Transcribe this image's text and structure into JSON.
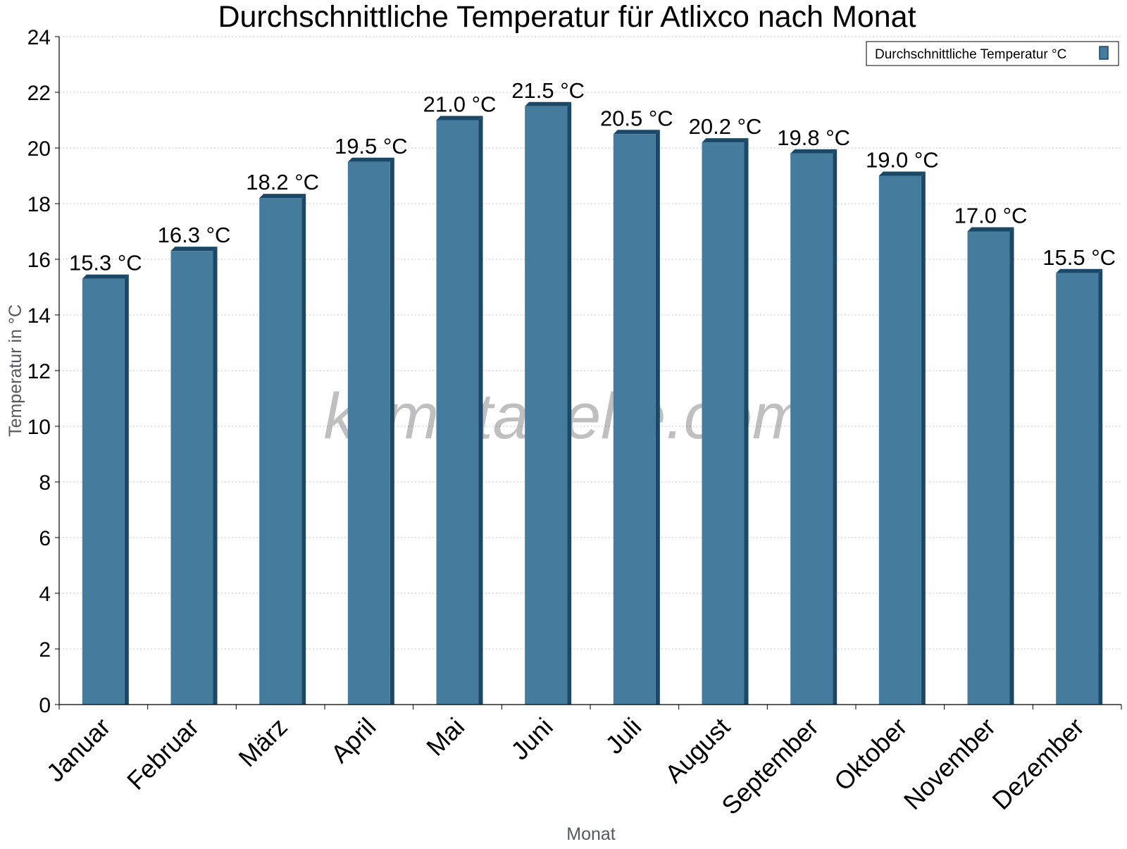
{
  "chart_data": {
    "type": "bar",
    "title": "Durchschnittliche Temperatur für Atlixco nach Monat",
    "xlabel": "Monat",
    "ylabel": "Temperatur in °C",
    "categories": [
      "Januar",
      "Februar",
      "März",
      "April",
      "Mai",
      "Juni",
      "Juli",
      "August",
      "September",
      "Oktober",
      "November",
      "Dezember"
    ],
    "series": [
      {
        "name": "Durchschnittliche Temperatur °C",
        "values": [
          15.3,
          16.3,
          18.2,
          19.5,
          21.0,
          21.5,
          20.5,
          20.2,
          19.8,
          19.0,
          17.0,
          15.5
        ],
        "labels": [
          "15.3 °C",
          "16.3 °C",
          "18.2 °C",
          "19.5 °C",
          "21.0 °C",
          "21.5 °C",
          "20.5 °C",
          "20.2 °C",
          "19.8 °C",
          "19.0 °C",
          "17.0 °C",
          "15.5 °C"
        ],
        "color": "#457b9d"
      }
    ],
    "ylim": [
      0,
      24
    ],
    "yticks": [
      0,
      2,
      4,
      6,
      8,
      10,
      12,
      14,
      16,
      18,
      20,
      22,
      24
    ],
    "grid": true,
    "legend_position": "top-right",
    "watermark": "klimatabelle.com"
  }
}
